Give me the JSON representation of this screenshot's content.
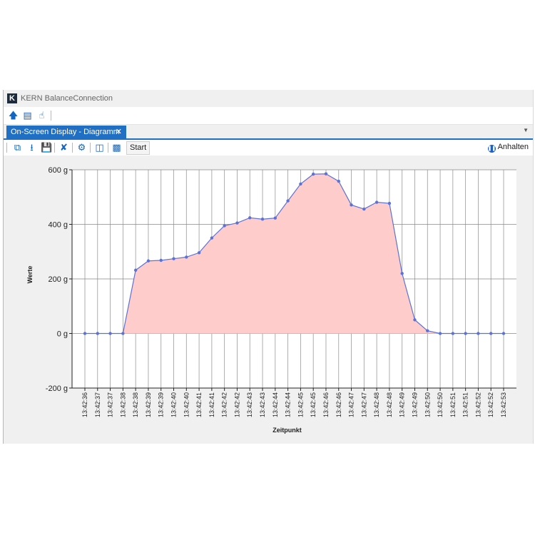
{
  "window": {
    "title": "KERN BalanceConnection"
  },
  "tab": {
    "label": "On-Screen Display - Diagramm",
    "close": "✕"
  },
  "toolbar2": {
    "start_label": "Start",
    "pause_label": "Anhalten"
  },
  "colors": {
    "accent": "#1f6fc4",
    "area_fill": "#ffcccc",
    "series_line": "#5b72d6"
  },
  "chart_data": {
    "type": "area",
    "xlabel": "Zeitpunkt",
    "ylabel": "Werte",
    "ylim": [
      -200,
      600
    ],
    "yticks": [
      "600 g",
      "400 g",
      "200 g",
      "0 g",
      "-200 g"
    ],
    "ytick_values": [
      600,
      400,
      200,
      0,
      -200
    ],
    "grid": true,
    "x": [
      "13:42:36",
      "13:42:37",
      "13:42:37",
      "13:42:38",
      "13:42:38",
      "13:42:39",
      "13:42:39",
      "13:42:40",
      "13:42:40",
      "13:42:41",
      "13:42:41",
      "13:42:42",
      "13:42:42",
      "13:42:43",
      "13:42:43",
      "13:42:44",
      "13:42:44",
      "13:42:45",
      "13:42:45",
      "13:42:46",
      "13:42:46",
      "13:42:47",
      "13:42:47",
      "13:42:48",
      "13:42:48",
      "13:42:49",
      "13:42:49",
      "13:42:50",
      "13:42:50",
      "13:42:51",
      "13:42:51",
      "13:42:52",
      "13:42:52",
      "13:42:53"
    ],
    "values": [
      0,
      0,
      0,
      0,
      232,
      266,
      268,
      274,
      280,
      296,
      350,
      395,
      405,
      424,
      419,
      423,
      486,
      548,
      584,
      585,
      558,
      471,
      456,
      481,
      477,
      220,
      50,
      10,
      0,
      0,
      0,
      0,
      0,
      0
    ]
  }
}
